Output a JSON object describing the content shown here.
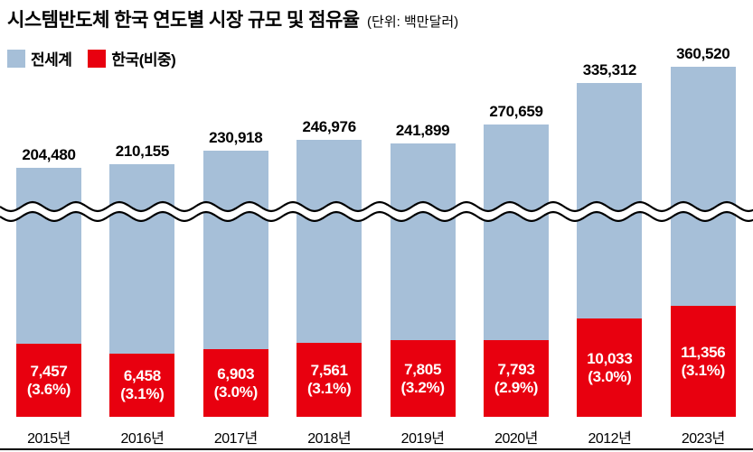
{
  "title": "시스템반도체 한국 연도별 시장 규모 및 점유율",
  "unit_note": "(단위: 백만달러)",
  "legend": [
    {
      "label": "전세계",
      "color": "#a6bfd8"
    },
    {
      "label": "한국(비중)",
      "color": "#e8000f"
    }
  ],
  "chart_data": {
    "type": "bar",
    "title": "시스템반도체 한국 연도별 시장 규모 및 점유율",
    "unit": "백만달러",
    "categories": [
      "2015년",
      "2016년",
      "2017년",
      "2018년",
      "2019년",
      "2020년",
      "2012년",
      "2023년"
    ],
    "series": [
      {
        "name": "전세계",
        "values": [
          204480,
          210155,
          230918,
          246976,
          241899,
          270659,
          335312,
          360520
        ]
      },
      {
        "name": "한국(비중)",
        "values": [
          7457,
          6458,
          6903,
          7561,
          7805,
          7793,
          10033,
          11356
        ],
        "shares_pct": [
          3.6,
          3.1,
          3.0,
          3.1,
          3.2,
          2.9,
          3.0,
          3.1
        ]
      }
    ],
    "value_labels": [
      "204,480",
      "210,155",
      "230,918",
      "246,976",
      "241,899",
      "270,659",
      "335,312",
      "360,520"
    ],
    "korea_labels": [
      "7,457",
      "6,458",
      "6,903",
      "7,561",
      "7,805",
      "7,793",
      "10,033",
      "11,356"
    ],
    "share_labels": [
      "(3.6%)",
      "(3.1%)",
      "(3.0%)",
      "(3.1%)",
      "(3.2%)",
      "(2.9%)",
      "(3.0%)",
      "(3.1%)"
    ],
    "axis_break": true,
    "legend_position": "top-left",
    "grid": false,
    "colors": {
      "world": "#a6bfd8",
      "korea": "#e8000f"
    }
  }
}
